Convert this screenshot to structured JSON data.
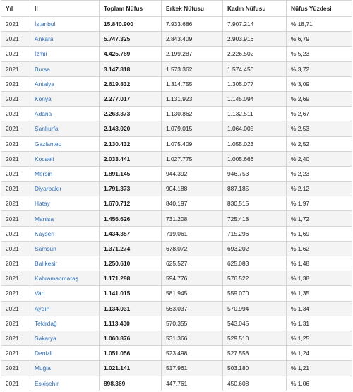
{
  "table": {
    "headers": [
      "Yıl",
      "İl",
      "Toplam Nüfus",
      "Erkek Nüfusu",
      "Kadın Nüfusu",
      "Nüfus Yüzdesi"
    ],
    "rows": [
      {
        "year": "2021",
        "city": "İstanbul",
        "total": "15.840.900",
        "male": "7.933.686",
        "female": "7.907.214",
        "percent": "% 18,71"
      },
      {
        "year": "2021",
        "city": "Ankara",
        "total": "5.747.325",
        "male": "2.843.409",
        "female": "2.903.916",
        "percent": "% 6,79"
      },
      {
        "year": "2021",
        "city": "İzmir",
        "total": "4.425.789",
        "male": "2.199.287",
        "female": "2.226.502",
        "percent": "% 5,23"
      },
      {
        "year": "2021",
        "city": "Bursa",
        "total": "3.147.818",
        "male": "1.573.362",
        "female": "1.574.456",
        "percent": "% 3,72"
      },
      {
        "year": "2021",
        "city": "Antalya",
        "total": "2.619.832",
        "male": "1.314.755",
        "female": "1.305.077",
        "percent": "% 3,09"
      },
      {
        "year": "2021",
        "city": "Konya",
        "total": "2.277.017",
        "male": "1.131.923",
        "female": "1.145.094",
        "percent": "% 2,69"
      },
      {
        "year": "2021",
        "city": "Adana",
        "total": "2.263.373",
        "male": "1.130.862",
        "female": "1.132.511",
        "percent": "% 2,67"
      },
      {
        "year": "2021",
        "city": "Şanlıurfa",
        "total": "2.143.020",
        "male": "1.079.015",
        "female": "1.064.005",
        "percent": "% 2,53"
      },
      {
        "year": "2021",
        "city": "Gaziantep",
        "total": "2.130.432",
        "male": "1.075.409",
        "female": "1.055.023",
        "percent": "% 2,52"
      },
      {
        "year": "2021",
        "city": "Kocaeli",
        "total": "2.033.441",
        "male": "1.027.775",
        "female": "1.005.666",
        "percent": "% 2,40"
      },
      {
        "year": "2021",
        "city": "Mersin",
        "total": "1.891.145",
        "male": "944.392",
        "female": "946.753",
        "percent": "% 2,23"
      },
      {
        "year": "2021",
        "city": "Diyarbakır",
        "total": "1.791.373",
        "male": "904.188",
        "female": "887.185",
        "percent": "% 2,12"
      },
      {
        "year": "2021",
        "city": "Hatay",
        "total": "1.670.712",
        "male": "840.197",
        "female": "830.515",
        "percent": "% 1,97"
      },
      {
        "year": "2021",
        "city": "Manisa",
        "total": "1.456.626",
        "male": "731.208",
        "female": "725.418",
        "percent": "% 1,72"
      },
      {
        "year": "2021",
        "city": "Kayseri",
        "total": "1.434.357",
        "male": "719.061",
        "female": "715.296",
        "percent": "% 1,69"
      },
      {
        "year": "2021",
        "city": "Samsun",
        "total": "1.371.274",
        "male": "678.072",
        "female": "693.202",
        "percent": "% 1,62"
      },
      {
        "year": "2021",
        "city": "Balıkesir",
        "total": "1.250.610",
        "male": "625.527",
        "female": "625.083",
        "percent": "% 1,48"
      },
      {
        "year": "2021",
        "city": "Kahramanmaraş",
        "total": "1.171.298",
        "male": "594.776",
        "female": "576.522",
        "percent": "% 1,38"
      },
      {
        "year": "2021",
        "city": "Van",
        "total": "1.141.015",
        "male": "581.945",
        "female": "559.070",
        "percent": "% 1,35"
      },
      {
        "year": "2021",
        "city": "Aydın",
        "total": "1.134.031",
        "male": "563.037",
        "female": "570.994",
        "percent": "% 1,34"
      },
      {
        "year": "2021",
        "city": "Tekirdağ",
        "total": "1.113.400",
        "male": "570.355",
        "female": "543.045",
        "percent": "% 1,31"
      },
      {
        "year": "2021",
        "city": "Sakarya",
        "total": "1.060.876",
        "male": "531.366",
        "female": "529.510",
        "percent": "% 1,25"
      },
      {
        "year": "2021",
        "city": "Denizli",
        "total": "1.051.056",
        "male": "523.498",
        "female": "527.558",
        "percent": "% 1,24"
      },
      {
        "year": "2021",
        "city": "Muğla",
        "total": "1.021.141",
        "male": "517.961",
        "female": "503.180",
        "percent": "% 1,21"
      },
      {
        "year": "2021",
        "city": "Eskişehir",
        "total": "898.369",
        "male": "447.761",
        "female": "450.608",
        "percent": "% 1,06"
      }
    ]
  },
  "colors": {
    "link": "#2f6eb5",
    "border": "#d4d4d4",
    "row_alt": "#f4f4f4"
  }
}
